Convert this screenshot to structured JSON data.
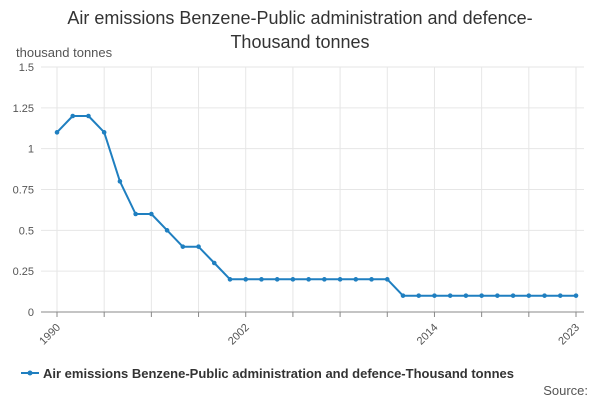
{
  "chart_data": {
    "type": "line",
    "title_lines": [
      "Air emissions Benzene-Public administration and defence-",
      "Thousand tonnes"
    ],
    "ylabel": "thousand tonnes",
    "ylim": [
      0,
      1.5
    ],
    "y_ticks": [
      "0",
      "0.25",
      "0.5",
      "0.75",
      "1",
      "1.25",
      "1.5"
    ],
    "y_tick_values": [
      0,
      0.25,
      0.5,
      0.75,
      1,
      1.25,
      1.5
    ],
    "x_tick_labels": [
      "1990",
      "2002",
      "2014",
      "2023"
    ],
    "x_tick_values": [
      1990,
      2002,
      2014,
      2023
    ],
    "x_grid_step": 3,
    "xlim": [
      1990,
      2023
    ],
    "grid": true,
    "legend_position": "bottom",
    "source_label": "Source:",
    "series": [
      {
        "name": "Air emissions Benzene-Public administration and defence-Thousand tonnes",
        "color": "#1f7fc0",
        "x": [
          1990,
          1991,
          1992,
          1993,
          1994,
          1995,
          1996,
          1997,
          1998,
          1999,
          2000,
          2001,
          2002,
          2003,
          2004,
          2005,
          2006,
          2007,
          2008,
          2009,
          2010,
          2011,
          2012,
          2013,
          2014,
          2015,
          2016,
          2017,
          2018,
          2019,
          2020,
          2021,
          2022,
          2023
        ],
        "values": [
          1.1,
          1.2,
          1.2,
          1.1,
          0.8,
          0.6,
          0.6,
          0.5,
          0.4,
          0.4,
          0.3,
          0.2,
          0.2,
          0.2,
          0.2,
          0.2,
          0.2,
          0.2,
          0.2,
          0.2,
          0.2,
          0.2,
          0.1,
          0.1,
          0.1,
          0.1,
          0.1,
          0.1,
          0.1,
          0.1,
          0.1,
          0.1,
          0.1,
          0.1
        ]
      }
    ]
  }
}
